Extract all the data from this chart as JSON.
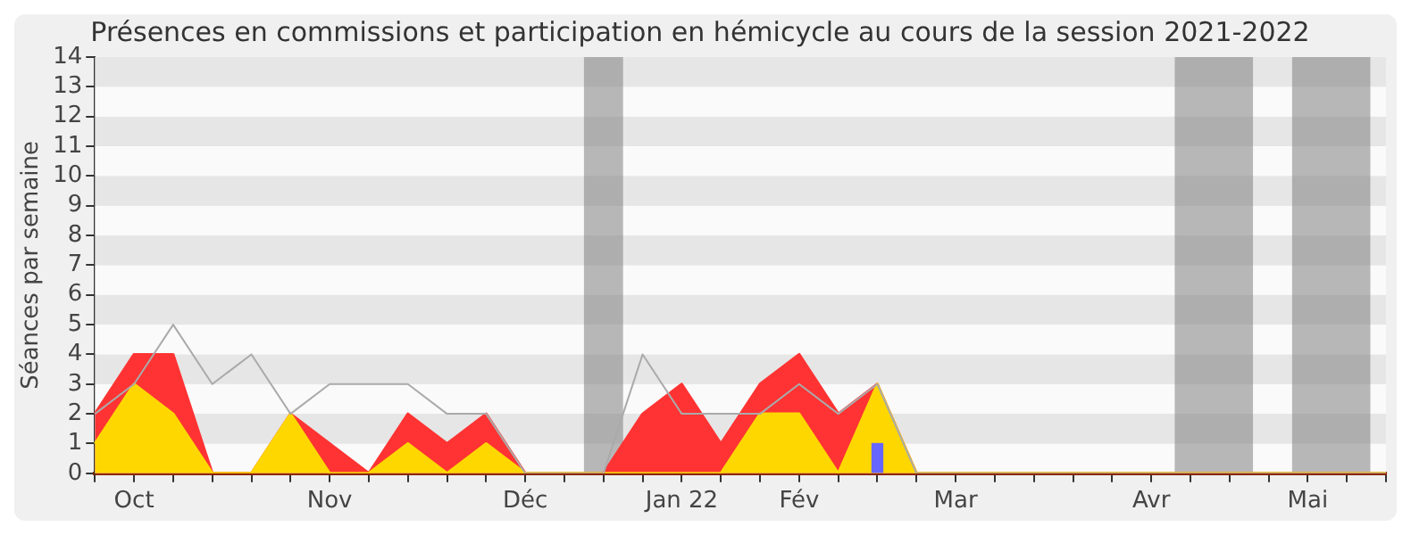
{
  "chart_data": {
    "type": "area",
    "title": "Présences en commissions et participation en hémicycle au cours de la session 2021-2022",
    "ylabel": "Séances par semaine",
    "categories": [
      null,
      "Oct",
      null,
      null,
      null,
      null,
      "Nov",
      null,
      null,
      null,
      null,
      "Déc",
      null,
      null,
      null,
      "Jan 22",
      null,
      null,
      "Fév",
      null,
      null,
      null,
      "Mar",
      null,
      null,
      null,
      null,
      "Avr",
      null,
      null,
      null,
      "Mai",
      null,
      null
    ],
    "series": [
      {
        "type": "line",
        "color": "#aaaaaa",
        "values": [
          2,
          3,
          5,
          3,
          4,
          2,
          3,
          3,
          3,
          2,
          2,
          0,
          0,
          0,
          4,
          2,
          2,
          2,
          3,
          2,
          3,
          0,
          0,
          0,
          0,
          0,
          0,
          0,
          0,
          0,
          0,
          0,
          0,
          0
        ]
      },
      {
        "color": "#ff3333",
        "values": [
          2,
          4,
          4,
          0,
          0,
          2,
          1,
          0,
          2,
          1,
          2,
          0,
          0,
          0,
          2,
          3,
          1,
          3,
          4,
          2,
          3,
          0,
          0,
          0,
          0,
          0,
          0,
          0,
          0,
          0,
          0,
          0,
          0,
          0
        ]
      },
      {
        "color": "#ffd700",
        "values": [
          1,
          3,
          2,
          0,
          0,
          2,
          0,
          0,
          1,
          0,
          1,
          0,
          0,
          0,
          0,
          0,
          0,
          2,
          2,
          0,
          3,
          0,
          0,
          0,
          0,
          0,
          0,
          0,
          0,
          0,
          0,
          0,
          0,
          0
        ]
      },
      {
        "type": "bar",
        "color": "#6666ff",
        "values": [
          null,
          null,
          null,
          null,
          null,
          null,
          null,
          null,
          null,
          null,
          null,
          null,
          null,
          null,
          null,
          null,
          null,
          null,
          null,
          null,
          1,
          null,
          null,
          null,
          null,
          null,
          null,
          null,
          null,
          null,
          null,
          null,
          null,
          null
        ]
      }
    ],
    "ylim": [
      0,
      14
    ],
    "yticks": [
      0,
      1,
      2,
      3,
      4,
      5,
      6,
      7,
      8,
      9,
      10,
      11,
      12,
      13,
      14
    ]
  }
}
